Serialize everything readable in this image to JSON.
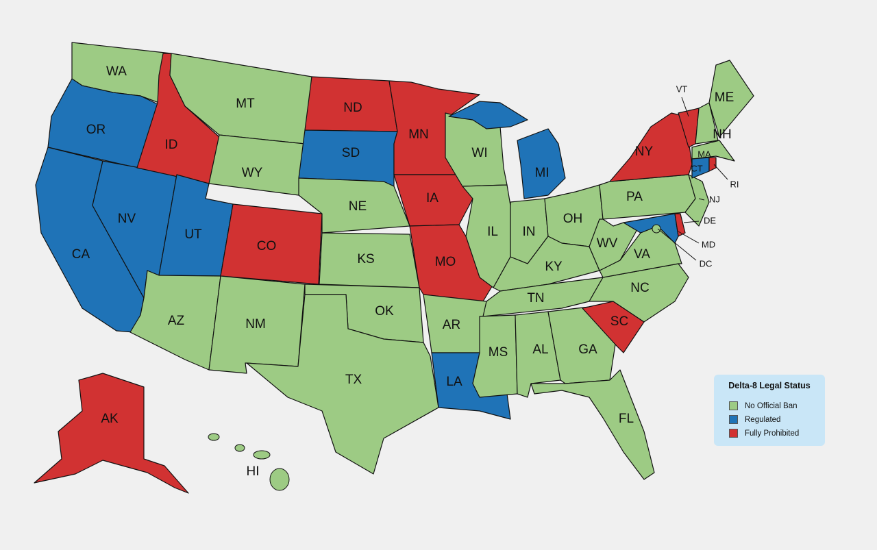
{
  "colors": {
    "No Official Ban": "#9dcb84",
    "Regulated": "#1f73b7",
    "Fully Prohibited": "#d13232",
    "background": "#f0f0f0",
    "legend_bg": "#c9e6f7"
  },
  "legend": {
    "title": "Delta-8 Legal Status",
    "items": [
      {
        "label": "No Official Ban",
        "status": "green"
      },
      {
        "label": "Regulated",
        "status": "blue"
      },
      {
        "label": "Fully Prohibited",
        "status": "red"
      }
    ]
  },
  "states": {
    "WA": "No Official Ban",
    "OR": "Regulated",
    "CA": "Regulated",
    "NV": "Regulated",
    "ID": "Fully Prohibited",
    "MT": "No Official Ban",
    "WY": "No Official Ban",
    "UT": "Regulated",
    "CO": "Fully Prohibited",
    "AZ": "No Official Ban",
    "NM": "No Official Ban",
    "ND": "Fully Prohibited",
    "SD": "Regulated",
    "NE": "No Official Ban",
    "KS": "No Official Ban",
    "OK": "No Official Ban",
    "TX": "No Official Ban",
    "MN": "Fully Prohibited",
    "IA": "Fully Prohibited",
    "MO": "Fully Prohibited",
    "AR": "No Official Ban",
    "LA": "Regulated",
    "WI": "No Official Ban",
    "IL": "No Official Ban",
    "MI": "Regulated",
    "IN": "No Official Ban",
    "OH": "No Official Ban",
    "KY": "No Official Ban",
    "TN": "No Official Ban",
    "MS": "No Official Ban",
    "AL": "No Official Ban",
    "GA": "No Official Ban",
    "FL": "No Official Ban",
    "SC": "Fully Prohibited",
    "NC": "No Official Ban",
    "VA": "No Official Ban",
    "WV": "No Official Ban",
    "PA": "No Official Ban",
    "NY": "Fully Prohibited",
    "NJ": "No Official Ban",
    "MD": "Regulated",
    "DE": "Fully Prohibited",
    "DC": "No Official Ban",
    "VT": "Fully Prohibited",
    "NH": "No Official Ban",
    "ME": "No Official Ban",
    "MA": "No Official Ban",
    "CT": "Regulated",
    "RI": "Fully Prohibited",
    "AK": "Fully Prohibited",
    "HI": "No Official Ban"
  }
}
